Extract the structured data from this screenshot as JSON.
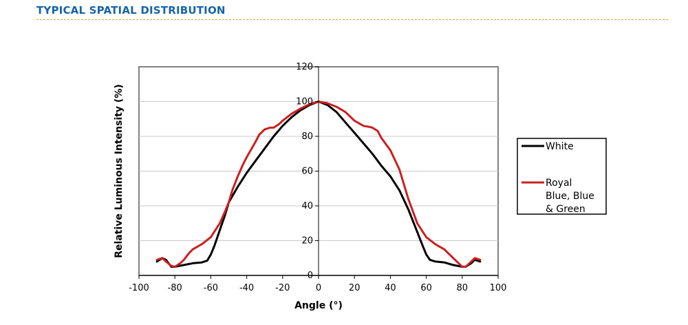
{
  "header": {
    "title": "TYPICAL SPATIAL DISTRIBUTION"
  },
  "chart_data": {
    "type": "line",
    "xlabel": "Angle (°)",
    "ylabel": "Relative Luminous Intensity (%)",
    "xlim": [
      -100,
      100
    ],
    "ylim": [
      0,
      120
    ],
    "x_ticks": [
      -100,
      -80,
      -60,
      -40,
      -20,
      0,
      20,
      40,
      60,
      80,
      100
    ],
    "y_ticks": [
      0,
      20,
      40,
      60,
      80,
      100,
      120
    ],
    "grid": "horizontal",
    "legend_position": "right",
    "series": [
      {
        "name": "White",
        "color": "#000000",
        "points": [
          [
            -90,
            8
          ],
          [
            -87,
            10
          ],
          [
            -85,
            9
          ],
          [
            -82,
            5
          ],
          [
            -80,
            5
          ],
          [
            -75,
            6
          ],
          [
            -70,
            7
          ],
          [
            -65,
            7.5
          ],
          [
            -62,
            8.5
          ],
          [
            -60,
            12
          ],
          [
            -58,
            17
          ],
          [
            -55,
            26
          ],
          [
            -52,
            35
          ],
          [
            -50,
            42
          ],
          [
            -45,
            51
          ],
          [
            -40,
            59
          ],
          [
            -35,
            66
          ],
          [
            -30,
            73
          ],
          [
            -25,
            80
          ],
          [
            -20,
            86
          ],
          [
            -15,
            91
          ],
          [
            -10,
            95
          ],
          [
            -5,
            98
          ],
          [
            0,
            100
          ],
          [
            5,
            98
          ],
          [
            10,
            94
          ],
          [
            15,
            88
          ],
          [
            20,
            82
          ],
          [
            25,
            76
          ],
          [
            30,
            70
          ],
          [
            35,
            63
          ],
          [
            40,
            57
          ],
          [
            45,
            49
          ],
          [
            50,
            38
          ],
          [
            55,
            25
          ],
          [
            58,
            17
          ],
          [
            60,
            12
          ],
          [
            62,
            9
          ],
          [
            65,
            8
          ],
          [
            70,
            7.5
          ],
          [
            75,
            6
          ],
          [
            80,
            5
          ],
          [
            82,
            5
          ],
          [
            85,
            7
          ],
          [
            87,
            9
          ],
          [
            90,
            8
          ]
        ]
      },
      {
        "name": "Royal\nBlue, Blue\n& Green",
        "legend_lines": [
          "Royal",
          "Blue, Blue",
          "& Green"
        ],
        "color": "#cc1f1f",
        "points": [
          [
            -90,
            9
          ],
          [
            -87,
            10
          ],
          [
            -85,
            8
          ],
          [
            -82,
            5.5
          ],
          [
            -80,
            5
          ],
          [
            -77,
            7
          ],
          [
            -75,
            9
          ],
          [
            -72,
            13
          ],
          [
            -70,
            15
          ],
          [
            -65,
            18
          ],
          [
            -60,
            22
          ],
          [
            -55,
            30
          ],
          [
            -52,
            37
          ],
          [
            -50,
            42
          ],
          [
            -48,
            49
          ],
          [
            -45,
            57
          ],
          [
            -42,
            64
          ],
          [
            -40,
            68
          ],
          [
            -35,
            77
          ],
          [
            -33,
            81
          ],
          [
            -30,
            84
          ],
          [
            -27,
            85
          ],
          [
            -25,
            85
          ],
          [
            -22,
            87
          ],
          [
            -20,
            89
          ],
          [
            -15,
            93
          ],
          [
            -10,
            96
          ],
          [
            -5,
            98.5
          ],
          [
            0,
            100
          ],
          [
            5,
            99
          ],
          [
            10,
            97
          ],
          [
            15,
            94
          ],
          [
            20,
            89
          ],
          [
            25,
            86
          ],
          [
            28,
            85.5
          ],
          [
            30,
            85
          ],
          [
            33,
            83
          ],
          [
            35,
            79
          ],
          [
            40,
            72
          ],
          [
            45,
            61
          ],
          [
            50,
            44
          ],
          [
            55,
            30
          ],
          [
            60,
            22
          ],
          [
            65,
            18
          ],
          [
            70,
            15
          ],
          [
            75,
            10
          ],
          [
            78,
            7
          ],
          [
            80,
            5
          ],
          [
            82,
            5
          ],
          [
            85,
            8
          ],
          [
            87,
            10
          ],
          [
            90,
            9
          ]
        ]
      }
    ]
  }
}
